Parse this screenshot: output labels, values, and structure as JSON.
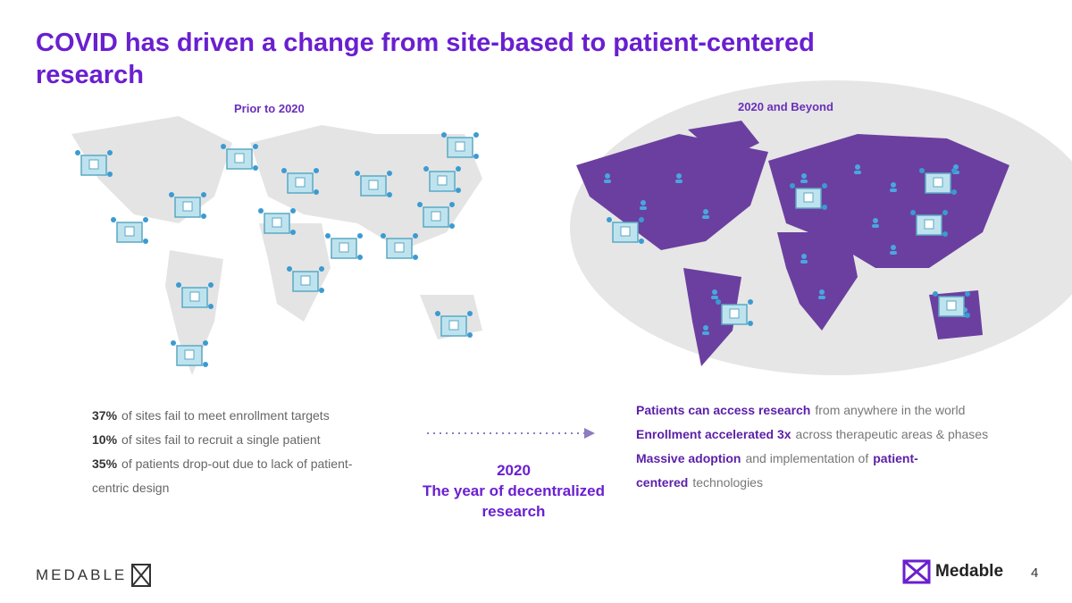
{
  "title": "COVID has driven a change from site-based to patient-centered research",
  "left_map": {
    "label": "Prior to 2020"
  },
  "right_map": {
    "label": "2020 and Beyond"
  },
  "stats": [
    [
      {
        "text": "37%",
        "bold": true
      },
      {
        "text": "of sites fail to meet enrollment targets",
        "bold": false
      }
    ],
    [
      {
        "text": "10%",
        "bold": true
      },
      {
        "text": "of sites fail to recruit a single patient",
        "bold": false
      }
    ],
    [
      {
        "text": "35%",
        "bold": true
      },
      {
        "text": "of patients drop-out due to lack of patient-centric design",
        "bold": false
      }
    ]
  ],
  "center": {
    "year": "2020",
    "caption": "The year of decentralized research"
  },
  "benefits": [
    [
      {
        "text": "Patients can access research",
        "bold": true
      },
      {
        "text": "from anywhere in the world",
        "bold": false
      }
    ],
    [
      {
        "text": "Enrollment accelerated 3x",
        "bold": true
      },
      {
        "text": "across therapeutic areas & phases",
        "bold": false
      }
    ],
    [
      {
        "text": "Massive adoption",
        "bold": true
      },
      {
        "text": "and implementation of",
        "bold": false
      },
      {
        "text": "patient-centered",
        "bold": true
      },
      {
        "text": "technologies",
        "bold": false
      }
    ]
  ],
  "footer": {
    "brand_left": "MEDABLE",
    "brand_right": "Medable",
    "page": "4"
  }
}
